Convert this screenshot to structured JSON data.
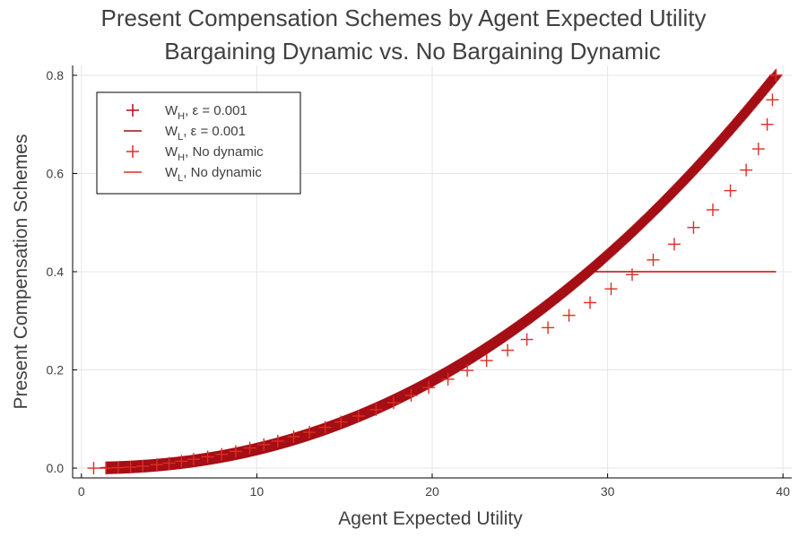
{
  "chart_data": {
    "type": "scatter",
    "title": [
      "Present Compensation Schemes by Agent Expected Utility",
      "Bargaining Dynamic vs. No Bargaining Dynamic"
    ],
    "xlabel": "Agent Expected Utility",
    "ylabel": "Present Compensation Schemes",
    "xlim": [
      -0.5,
      40.5
    ],
    "ylim": [
      -0.02,
      0.82
    ],
    "xticks": [
      0,
      10,
      20,
      30,
      40
    ],
    "yticks": [
      0.0,
      0.2,
      0.4,
      0.6,
      0.8
    ],
    "xtick_labels": [
      "0",
      "10",
      "20",
      "30",
      "40"
    ],
    "ytick_labels": [
      "0.0",
      "0.2",
      "0.4",
      "0.6",
      "0.8"
    ],
    "grid": true,
    "legend_position": "top-left",
    "series": [
      {
        "name": "W_H, ε = 0.001",
        "legend": {
          "main": "W",
          "sub": "H",
          "rest": ", ε = 0.001"
        },
        "style": "plus-dense",
        "color": "#a50f15",
        "x_range": [
          1.4,
          39.6
        ],
        "curve": "0.8*(x/39.6)^2.2"
      },
      {
        "name": "W_L, ε = 0.001",
        "legend": {
          "main": "W",
          "sub": "L",
          "rest": ", ε = 0.001"
        },
        "style": "line",
        "color": "#a50f15",
        "x_range": [
          1.4,
          39.6
        ],
        "curve": "min(0.8*(x/39.6)^2.2, 0.4)"
      },
      {
        "name": "W_H, No dynamic",
        "legend": {
          "main": "W",
          "sub": "H",
          "rest": ", No dynamic"
        },
        "style": "plus",
        "color": "#de2d26",
        "points": [
          [
            0.7,
            0.0
          ],
          [
            1.4,
            0.0
          ],
          [
            2.1,
            0.001
          ],
          [
            2.8,
            0.002
          ],
          [
            3.5,
            0.004
          ],
          [
            4.3,
            0.007
          ],
          [
            5.0,
            0.01
          ],
          [
            5.7,
            0.014
          ],
          [
            6.4,
            0.018
          ],
          [
            7.2,
            0.023
          ],
          [
            8.0,
            0.028
          ],
          [
            8.8,
            0.034
          ],
          [
            9.6,
            0.041
          ],
          [
            10.4,
            0.048
          ],
          [
            11.2,
            0.055
          ],
          [
            12.1,
            0.064
          ],
          [
            13.0,
            0.073
          ],
          [
            13.9,
            0.083
          ],
          [
            14.8,
            0.094
          ],
          [
            15.8,
            0.106
          ],
          [
            16.8,
            0.119
          ],
          [
            17.8,
            0.133
          ],
          [
            18.8,
            0.148
          ],
          [
            19.8,
            0.164
          ],
          [
            20.9,
            0.181
          ],
          [
            22.0,
            0.199
          ],
          [
            23.1,
            0.219
          ],
          [
            24.3,
            0.24
          ],
          [
            25.4,
            0.262
          ],
          [
            26.6,
            0.286
          ],
          [
            27.8,
            0.311
          ],
          [
            29.0,
            0.337
          ],
          [
            30.2,
            0.365
          ],
          [
            31.4,
            0.394
          ],
          [
            32.6,
            0.424
          ],
          [
            33.8,
            0.456
          ],
          [
            34.9,
            0.49
          ],
          [
            36.0,
            0.526
          ],
          [
            37.0,
            0.565
          ],
          [
            37.9,
            0.607
          ],
          [
            38.6,
            0.65
          ],
          [
            39.1,
            0.7
          ],
          [
            39.4,
            0.75
          ],
          [
            39.6,
            0.8
          ]
        ]
      },
      {
        "name": "W_L, No dynamic",
        "legend": {
          "main": "W",
          "sub": "L",
          "rest": ", No dynamic"
        },
        "style": "line",
        "color": "#de2d26",
        "x_range": [
          31.8,
          39.6
        ],
        "y_constant": 0.4
      }
    ]
  }
}
